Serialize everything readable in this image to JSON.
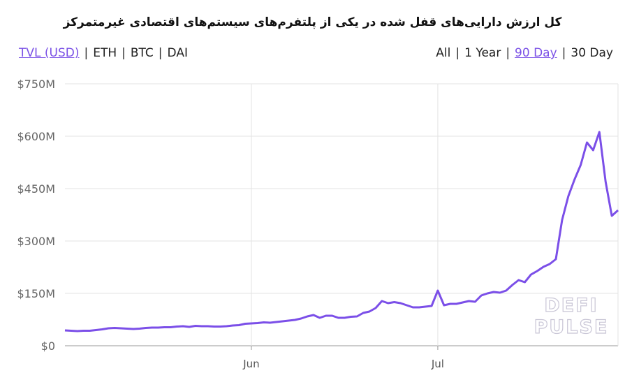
{
  "header": {
    "title": "کل ارزش دارایی‌های قفل شده در یکی از پلتفرم‌های سیستم‌های اقتصادی غیرمتمرکز",
    "separator": "|",
    "currency_options": [
      {
        "label": "TVL (USD)",
        "selected": true
      },
      {
        "label": "ETH",
        "selected": false
      },
      {
        "label": "BTC",
        "selected": false
      },
      {
        "label": "DAI",
        "selected": false
      }
    ],
    "range_options": [
      {
        "label": "All",
        "selected": false
      },
      {
        "label": "1 Year",
        "selected": false
      },
      {
        "label": "90 Day",
        "selected": true
      },
      {
        "label": "30 Day",
        "selected": false
      }
    ]
  },
  "chart_data": {
    "type": "line",
    "color": "#7b4fe8",
    "grid": true,
    "watermark": [
      "DEFI",
      "PULSE"
    ],
    "categories": [
      null,
      null,
      null,
      null,
      null,
      null,
      null,
      null,
      null,
      null,
      null,
      null,
      null,
      null,
      null,
      null,
      null,
      null,
      null,
      null,
      null,
      null,
      null,
      null,
      null,
      null,
      null,
      null,
      null,
      null,
      "Jun",
      null,
      null,
      null,
      null,
      null,
      null,
      null,
      null,
      null,
      null,
      null,
      null,
      null,
      null,
      null,
      null,
      null,
      null,
      null,
      null,
      null,
      null,
      null,
      null,
      null,
      null,
      null,
      null,
      null,
      "Jul",
      null,
      null,
      null,
      null,
      null,
      null,
      null,
      null,
      null,
      null,
      null,
      null,
      null,
      null,
      null,
      null,
      null,
      null,
      null,
      null,
      null,
      null,
      null,
      null,
      null,
      null,
      null,
      null,
      null
    ],
    "values": [
      44,
      43,
      42,
      43,
      43,
      45,
      47,
      50,
      51,
      50,
      49,
      48,
      49,
      51,
      52,
      52,
      53,
      53,
      55,
      56,
      54,
      57,
      56,
      56,
      55,
      55,
      56,
      58,
      59,
      63,
      64,
      65,
      67,
      66,
      68,
      70,
      72,
      74,
      78,
      84,
      88,
      80,
      86,
      86,
      80,
      80,
      83,
      84,
      94,
      98,
      108,
      128,
      122,
      125,
      122,
      116,
      110,
      110,
      112,
      114,
      158,
      116,
      120,
      120,
      124,
      128,
      126,
      144,
      150,
      154,
      152,
      158,
      174,
      188,
      182,
      204,
      214,
      226,
      234,
      248,
      360,
      428,
      476,
      518,
      582,
      560,
      612,
      470,
      372,
      388
    ],
    "ylim": [
      0,
      750
    ],
    "yticks": [
      {
        "value": 0,
        "label": "$0"
      },
      {
        "value": 150,
        "label": "$150M"
      },
      {
        "value": 300,
        "label": "$300M"
      },
      {
        "value": 450,
        "label": "$450M"
      },
      {
        "value": 600,
        "label": "$600M"
      },
      {
        "value": 750,
        "label": "$750M"
      }
    ]
  }
}
